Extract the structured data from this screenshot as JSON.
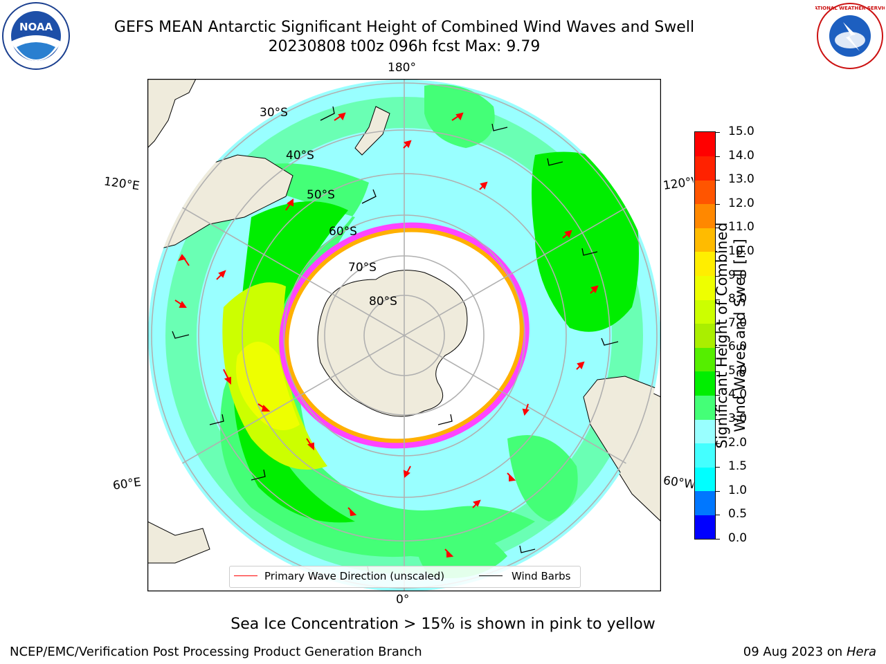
{
  "header": {
    "title_line1": "GEFS MEAN Antarctic Significant Height of Combined Wind Waves and Swell",
    "title_line2": "20230808 t00z 096h fcst   Max: 9.79",
    "noaa_logo_text": "NOAA",
    "nws_logo_text": "NATIONAL WEATHER SERVICE"
  },
  "map": {
    "projection": "south-polar-stereographic",
    "longitude_labels": {
      "top": "180°",
      "bottom": "0°",
      "upper_left": "120°E",
      "upper_right": "120°W",
      "lower_left": "60°E",
      "lower_right": "60°W"
    },
    "latitude_labels": [
      "30°S",
      "40°S",
      "50°S",
      "60°S",
      "70°S",
      "80°S"
    ],
    "colors": {
      "land": "#efebdc",
      "ice_outer": "#ff44ff",
      "ice_inner": "#ffb000",
      "grid": "#b0b0b0",
      "vector": "#ff0000",
      "barb": "#000000"
    }
  },
  "legend": {
    "wave_direction": "Primary Wave Direction (unscaled)",
    "wind_barbs": "Wind Barbs",
    "wave_color": "#ff0000",
    "barb_color": "#000000"
  },
  "colorbar": {
    "label_line1": "Significant Height of Combined",
    "label_line2": "Wind Waves and Swell [m]",
    "ticks": [
      "0.0",
      "0.5",
      "1.0",
      "1.5",
      "2.0",
      "3.0",
      "4.0",
      "5.0",
      "6.0",
      "7.0",
      "8.0",
      "9.0",
      "10.0",
      "11.0",
      "12.0",
      "13.0",
      "14.0",
      "15.0"
    ],
    "colors": [
      "#0000ff",
      "#0077ff",
      "#00ffff",
      "#44ffff",
      "#99ffff",
      "#44ff77",
      "#00ee00",
      "#55ee00",
      "#aaee00",
      "#ccff00",
      "#eeff00",
      "#ffee00",
      "#ffbb00",
      "#ff8800",
      "#ff5500",
      "#ff2200",
      "#ff0000"
    ]
  },
  "subtitle": "Sea Ice Concentration > 15% is shown in pink to yellow",
  "footer": {
    "left": "NCEP/EMC/Verification Post Processing Product Generation Branch",
    "right_date": "09 Aug 2023 on",
    "right_host": "Hera"
  }
}
